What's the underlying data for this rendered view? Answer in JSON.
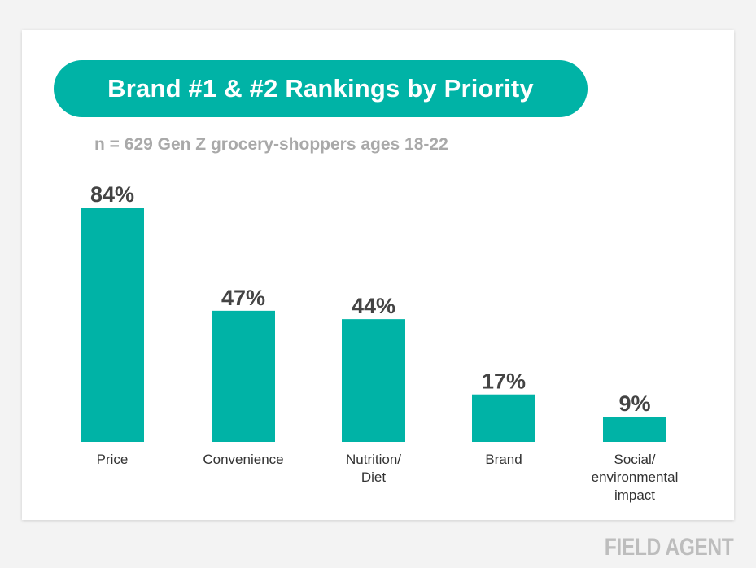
{
  "chart_data": {
    "type": "bar",
    "title": "Brand #1 & #2 Rankings by Priority",
    "subtitle": "n = 629 Gen Z grocery-shoppers ages 18-22",
    "categories": [
      [
        "Price"
      ],
      [
        "Convenience"
      ],
      [
        "Nutrition/",
        "Diet"
      ],
      [
        "Brand"
      ],
      [
        "Social/",
        "environmental",
        "impact"
      ]
    ],
    "values": [
      84,
      47,
      44,
      17,
      9
    ],
    "value_labels": [
      "84%",
      "47%",
      "44%",
      "17%",
      "9%"
    ],
    "unit": "%",
    "ylim": [
      0,
      84
    ],
    "grid": false,
    "legend": "none",
    "colors": {
      "bar": "#00b3a6",
      "value_label": "#444444",
      "category_label": "#333333"
    }
  },
  "branding": {
    "logo_text": "FIELD AGENT"
  }
}
